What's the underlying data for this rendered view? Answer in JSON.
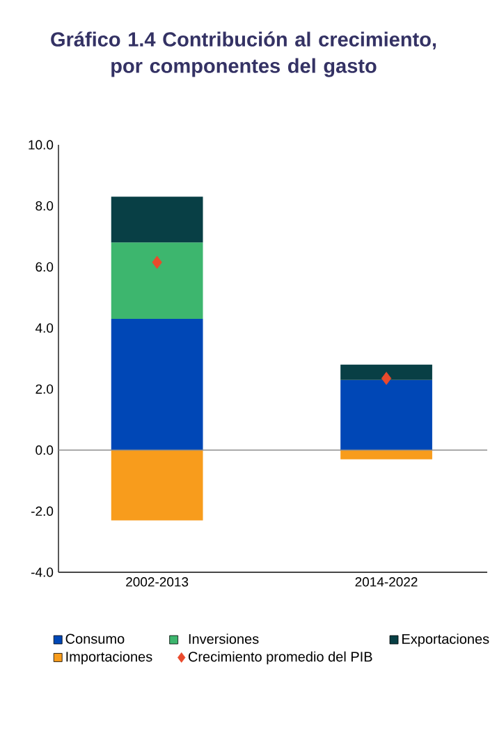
{
  "chart_data": {
    "type": "bar",
    "title": "Gráfico 1.4 Contribución al crecimiento, por componentes del gasto",
    "categories": [
      "2002-2013",
      "2014-2022"
    ],
    "stacked": true,
    "series": [
      {
        "name": "Consumo",
        "color": "#0047b6",
        "values": [
          4.3,
          2.3
        ]
      },
      {
        "name": "Inversiones",
        "color": "#3db66e",
        "values": [
          2.5,
          0
        ]
      },
      {
        "name": "Exportaciones",
        "color": "#083f45",
        "values": [
          1.5,
          0.5
        ]
      },
      {
        "name": "Importaciones",
        "color": "#f89c1c",
        "values": [
          -2.3,
          -0.3
        ]
      },
      {
        "name": "Crecimiento promedio del PIB",
        "type": "scatter",
        "marker": "diamond",
        "color": "#ea4a2c",
        "x": [
          "2002-2013",
          "2014-2022"
        ],
        "values": [
          6.15,
          2.35
        ]
      }
    ],
    "ylim": [
      -4,
      10
    ],
    "yticks": [
      {
        "value": -4,
        "label": "-4.0"
      },
      {
        "value": -2,
        "label": "-2.0"
      },
      {
        "value": 0,
        "label": "0.0"
      },
      {
        "value": 2,
        "label": "2.0"
      },
      {
        "value": 4,
        "label": "4.0"
      },
      {
        "value": 6,
        "label": "6.0"
      },
      {
        "value": 8,
        "label": "8.0"
      },
      {
        "value": 10,
        "label": "10.0"
      }
    ],
    "ref_lines": [
      {
        "axis": "y",
        "value": 0,
        "color": "#8a8a8a"
      }
    ],
    "grid": false,
    "legend": "bottom"
  }
}
